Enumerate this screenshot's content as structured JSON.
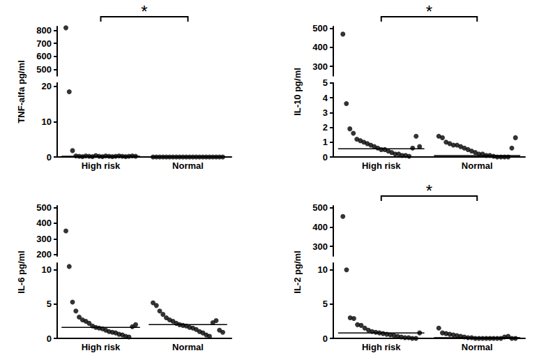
{
  "chart_data": [
    {
      "type": "scatter",
      "y_label": "TNF-alfa pg/ml",
      "color": "#000000",
      "categories": [
        "High risk",
        "Normal"
      ],
      "values": [
        [
          820,
          18.5,
          1.8,
          0.3,
          0.2,
          0.1,
          0.3,
          0.2,
          0.1,
          0.4,
          0.2,
          0.1,
          0.3,
          0.2,
          0.1,
          0.2,
          0.3,
          0.2,
          0.1,
          0.2,
          0.3,
          0.2
        ],
        [
          0,
          0,
          0,
          0,
          0,
          0,
          0,
          0,
          0,
          0,
          0,
          0,
          0,
          0,
          0,
          0,
          0,
          0,
          0,
          0,
          0,
          0
        ]
      ],
      "medians": [
        0.2,
        0
      ],
      "ylim": [
        [
          0,
          21
        ],
        [
          450,
          830
        ]
      ],
      "yticks": [
        [
          0,
          10,
          20
        ],
        [
          500,
          600,
          700,
          800
        ]
      ],
      "annotations": [
        {
          "text": "*",
          "from": "High risk",
          "to": "Normal"
        }
      ]
    },
    {
      "type": "scatter",
      "y_label": "IL-10 pg/ml",
      "color": "#000000",
      "categories": [
        "High risk",
        "Normal"
      ],
      "values": [
        [
          470,
          3.6,
          1.9,
          1.6,
          1.2,
          1.1,
          1.0,
          0.9,
          0.8,
          0.7,
          0.6,
          0.5,
          0.5,
          0.4,
          0.3,
          0.2,
          0.2,
          0.1,
          0.1,
          0.05,
          0.6,
          1.4,
          0.7
        ],
        [
          1.4,
          1.3,
          1.0,
          0.9,
          0.8,
          0.8,
          0.7,
          0.6,
          0.5,
          0.4,
          0.3,
          0.2,
          0.2,
          0.1,
          0.1,
          0.05,
          0,
          0,
          0,
          0,
          0.6,
          1.3
        ]
      ],
      "medians": [
        0.55,
        0.1
      ],
      "ylim": [
        [
          0,
          5
        ],
        [
          250,
          510
        ]
      ],
      "yticks": [
        [
          0,
          1,
          2,
          3,
          4,
          5
        ],
        [
          300,
          400,
          500
        ]
      ],
      "annotations": [
        {
          "text": "*",
          "from": "High risk",
          "to": "Normal"
        }
      ]
    },
    {
      "type": "scatter",
      "y_label": "IL-6 pg/ml",
      "color": "#000000",
      "categories": [
        "High risk",
        "Normal"
      ],
      "values": [
        [
          350,
          10.5,
          5.3,
          4.0,
          3.1,
          2.7,
          2.5,
          2.2,
          1.8,
          1.6,
          1.5,
          1.4,
          1.2,
          1.0,
          0.9,
          0.8,
          0.6,
          0.5,
          0.3,
          0.2,
          1.7,
          2.0
        ],
        [
          5.2,
          4.8,
          4.0,
          3.5,
          3.0,
          2.7,
          2.5,
          2.2,
          2.0,
          1.9,
          1.8,
          1.6,
          1.5,
          1.3,
          1.0,
          0.8,
          0.5,
          0.3,
          2.3,
          2.6,
          1.2,
          0.9
        ]
      ],
      "medians": [
        1.6,
        2.0
      ],
      "ylim": [
        [
          0,
          11
        ],
        [
          190,
          510
        ]
      ],
      "yticks": [
        [
          0,
          5,
          10
        ],
        [
          200,
          300,
          400,
          500
        ]
      ]
    },
    {
      "type": "scatter",
      "y_label": "IL-2 pg/ml",
      "color": "#000000",
      "categories": [
        "High risk",
        "Normal"
      ],
      "values": [
        [
          455,
          10,
          3.0,
          2.9,
          2.0,
          1.9,
          1.5,
          1.2,
          1.0,
          0.9,
          0.8,
          0.7,
          0.6,
          0.5,
          0.4,
          0.3,
          0.2,
          0.1,
          0.1,
          0,
          0,
          0.8
        ],
        [
          1.5,
          0.8,
          0.7,
          0.6,
          0.5,
          0.4,
          0.3,
          0.2,
          0.1,
          0.1,
          0,
          0,
          0,
          0,
          0,
          0,
          0,
          0,
          0.2,
          0.3,
          0,
          0
        ]
      ],
      "medians": [
        0.8,
        0.1
      ],
      "ylim": [
        [
          0,
          11
        ],
        [
          250,
          510
        ]
      ],
      "yticks": [
        [
          0,
          5,
          10
        ],
        [
          300,
          400,
          500
        ]
      ],
      "annotations": [
        {
          "text": "*",
          "from": "High risk",
          "to": "Normal"
        }
      ]
    }
  ]
}
